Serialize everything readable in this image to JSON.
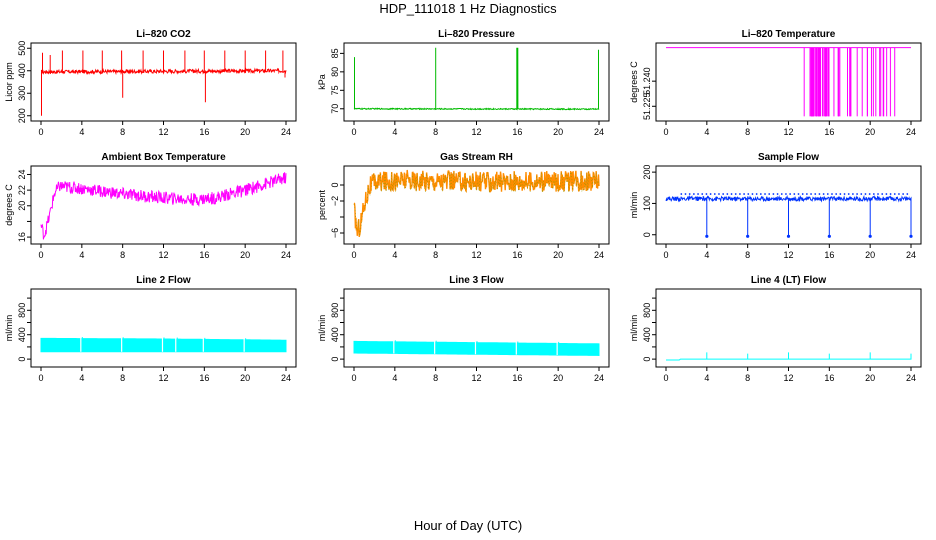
{
  "title": "HDP_111018  1 Hz Diagnostics",
  "xlabel": "Hour of Day (UTC)",
  "chart_data": [
    {
      "type": "line",
      "title": "Li–820 CO2",
      "ylabel": "Licor ppm",
      "color": "#ff0000",
      "xlim": [
        0,
        24
      ],
      "ylim": [
        190,
        510
      ],
      "xticks": [
        0,
        4,
        8,
        12,
        16,
        20,
        24
      ],
      "yticks": [
        200,
        300,
        400,
        500
      ],
      "ytick_labels": [
        "200",
        "300",
        "400",
        "500"
      ],
      "baseline": [
        395,
        400
      ],
      "noise": 8,
      "spikes": [
        [
          0.05,
          200
        ],
        [
          0.15,
          480
        ],
        [
          0.9,
          470
        ],
        [
          2.1,
          490
        ],
        [
          4.1,
          490
        ],
        [
          6.0,
          490
        ],
        [
          7.9,
          490
        ],
        [
          8.0,
          280
        ],
        [
          10.0,
          490
        ],
        [
          12.0,
          490
        ],
        [
          14.1,
          490
        ],
        [
          16.0,
          490
        ],
        [
          16.1,
          260
        ],
        [
          18.0,
          490
        ],
        [
          20.0,
          490
        ],
        [
          22.0,
          490
        ],
        [
          23.7,
          490
        ],
        [
          23.9,
          370
        ]
      ]
    },
    {
      "type": "line",
      "title": "Li–820 Pressure",
      "ylabel": "kPa",
      "color": "#00bb00",
      "xlim": [
        0,
        24
      ],
      "ylim": [
        67.5,
        87
      ],
      "xticks": [
        0,
        4,
        8,
        12,
        16,
        20,
        24
      ],
      "yticks": [
        70,
        75,
        80,
        85
      ],
      "ytick_labels": [
        "70",
        "75",
        "80",
        "85"
      ],
      "baseline": [
        70.0,
        69.9
      ],
      "noise": 0.15,
      "spikes": [
        [
          0.05,
          84
        ],
        [
          8.0,
          86.5
        ],
        [
          15.95,
          86.5
        ],
        [
          16.05,
          86.5
        ],
        [
          23.95,
          86
        ]
      ]
    },
    {
      "type": "line",
      "title": "Li–820 Temperature",
      "ylabel": "degrees C",
      "color": "#ff00ff",
      "xlim": [
        0,
        24
      ],
      "ylim": [
        51.218,
        51.261
      ],
      "xticks": [
        0,
        4,
        8,
        12,
        16,
        20,
        24
      ],
      "yticks": [
        51.225,
        51.24
      ],
      "ytick_labels": [
        "51.225",
        "51.240"
      ],
      "baseline": [
        51.26,
        51.26
      ],
      "noise": 0,
      "drops_range": [
        13.3,
        22.7
      ],
      "drop_to": 51.219
    },
    {
      "type": "line",
      "title": "Ambient Box Temperature",
      "ylabel": "degrees C",
      "color": "#ff00ff",
      "xlim": [
        0,
        24
      ],
      "ylim": [
        15.5,
        24.7
      ],
      "xticks": [
        0,
        4,
        8,
        12,
        16,
        20,
        24
      ],
      "yticks": [
        16,
        18,
        20,
        22,
        24
      ],
      "ytick_labels": [
        "16",
        "",
        "20",
        "22",
        "24"
      ],
      "profile": [
        [
          0,
          17.5
        ],
        [
          0.3,
          16.2
        ],
        [
          0.8,
          18.5
        ],
        [
          1.3,
          21.5
        ],
        [
          1.8,
          22.5
        ],
        [
          4,
          22.2
        ],
        [
          8,
          21.5
        ],
        [
          12,
          21.0
        ],
        [
          15,
          20.8
        ],
        [
          17,
          21.0
        ],
        [
          20,
          22.0
        ],
        [
          24,
          23.6
        ]
      ],
      "noise": 0.8
    },
    {
      "type": "line",
      "title": "Gas Stream RH",
      "ylabel": "percent",
      "color": "#ff8c00",
      "color2": "#999900",
      "xlim": [
        0,
        24
      ],
      "ylim": [
        -7,
        2
      ],
      "xticks": [
        0,
        4,
        8,
        12,
        16,
        20,
        24
      ],
      "yticks": [
        -6,
        -4,
        -2,
        0
      ],
      "ytick_labels": [
        "−6",
        "",
        "−2",
        "0"
      ],
      "profile": [
        [
          0,
          -3.0
        ],
        [
          0.3,
          -5.8
        ],
        [
          0.6,
          -5.0
        ],
        [
          1.0,
          -2.5
        ],
        [
          1.5,
          -0.2
        ],
        [
          2.2,
          0.4
        ],
        [
          5,
          0.6
        ],
        [
          12,
          0.4
        ],
        [
          24,
          0.5
        ]
      ],
      "noise": 1.3
    },
    {
      "type": "line",
      "title": "Sample Flow",
      "ylabel": "ml/min",
      "color": "#0033ff",
      "xlim": [
        0,
        24
      ],
      "ylim": [
        -20,
        210
      ],
      "xticks": [
        0,
        4,
        8,
        12,
        16,
        20,
        24
      ],
      "yticks": [
        0,
        100,
        200
      ],
      "ytick_labels": [
        "0",
        "100",
        "200"
      ],
      "baseline": [
        115,
        115
      ],
      "noise": 7,
      "spikes": [
        [
          4.0,
          -5
        ],
        [
          8.0,
          -5
        ],
        [
          12.0,
          -5
        ],
        [
          16.0,
          -5
        ],
        [
          20.0,
          -5
        ],
        [
          24.0,
          -5
        ]
      ],
      "dots": true
    },
    {
      "type": "line",
      "title": "Line 2 Flow",
      "ylabel": "ml/min",
      "color": "#00ffff",
      "xlim": [
        0,
        24
      ],
      "ylim": [
        -80,
        1100
      ],
      "xticks": [
        0,
        4,
        8,
        12,
        16,
        20,
        24
      ],
      "yticks": [
        0,
        200,
        400,
        600,
        800,
        1000
      ],
      "ytick_labels": [
        "0",
        "",
        "400",
        "",
        "800",
        ""
      ],
      "band": [
        [
          0,
          120,
          340
        ],
        [
          12,
          120,
          330
        ],
        [
          24,
          120,
          310
        ]
      ],
      "gaps": [
        3.9,
        7.9,
        11.9,
        13.2,
        15.9,
        19.9
      ]
    },
    {
      "type": "line",
      "title": "Line 3 Flow",
      "ylabel": "ml/min",
      "color": "#00ffff",
      "xlim": [
        0,
        24
      ],
      "ylim": [
        -80,
        1100
      ],
      "xticks": [
        0,
        4,
        8,
        12,
        16,
        20,
        24
      ],
      "yticks": [
        0,
        200,
        400,
        600,
        800,
        1000
      ],
      "ytick_labels": [
        "0",
        "",
        "400",
        "",
        "800",
        ""
      ],
      "band": [
        [
          0,
          100,
          290
        ],
        [
          12,
          80,
          270
        ],
        [
          24,
          60,
          250
        ]
      ],
      "gaps": [
        3.9,
        7.9,
        11.9,
        15.9,
        19.9
      ]
    },
    {
      "type": "line",
      "title": "Line 4 (LT) Flow",
      "ylabel": "ml/min",
      "color": "#00ffff",
      "xlim": [
        0,
        24
      ],
      "ylim": [
        -80,
        1100
      ],
      "xticks": [
        0,
        4,
        8,
        12,
        16,
        20,
        24
      ],
      "yticks": [
        0,
        200,
        400,
        600,
        800,
        1000
      ],
      "ytick_labels": [
        "0",
        "",
        "400",
        "",
        "800",
        ""
      ],
      "profile": [
        [
          0,
          -15
        ],
        [
          1.3,
          -15
        ],
        [
          1.4,
          0
        ],
        [
          24,
          0
        ]
      ],
      "noise": 0,
      "spikes": [
        [
          4.0,
          110
        ],
        [
          8.0,
          90
        ],
        [
          12.0,
          110
        ],
        [
          16.0,
          90
        ],
        [
          20.0,
          110
        ],
        [
          24.0,
          90
        ]
      ]
    }
  ]
}
